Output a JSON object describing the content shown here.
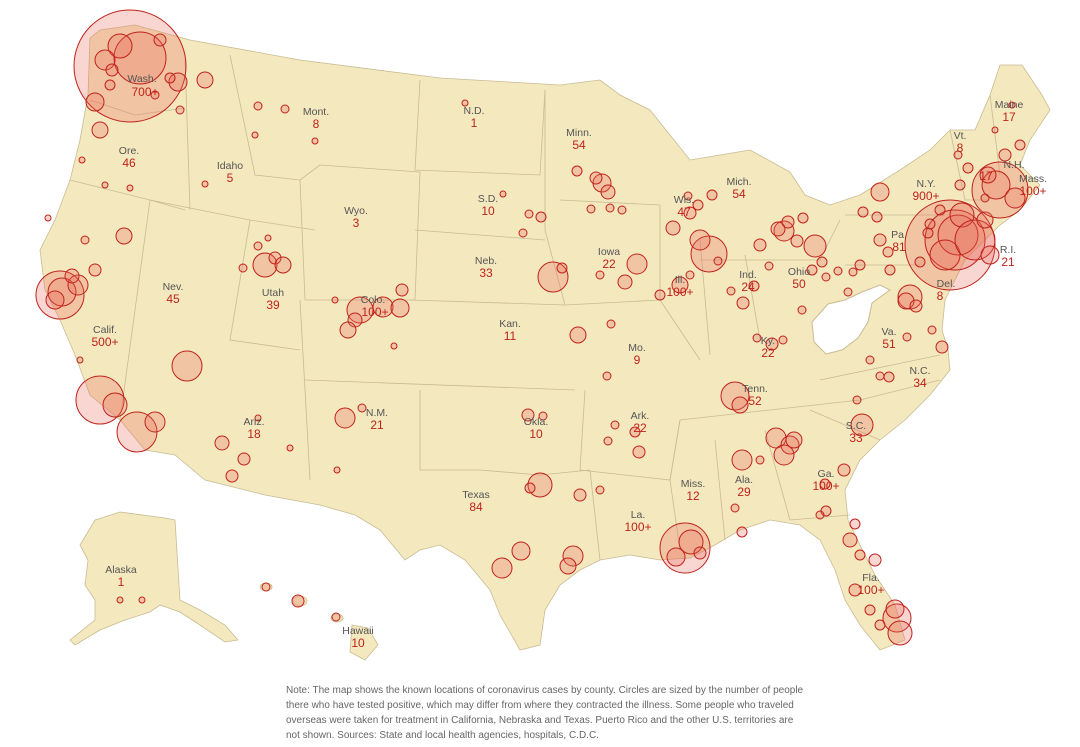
{
  "colors": {
    "land": "#f4e8be",
    "land_border": "#c9bb93",
    "no_cases_state": "#ffffff",
    "circle_fill": "#e86a5e",
    "circle_stroke": "#c0221b",
    "count_text": "#c0221b",
    "label_text": "#555555"
  },
  "states": [
    {
      "id": "wa",
      "name": "Wash.",
      "count": "700+"
    },
    {
      "id": "or",
      "name": "Ore.",
      "count": "46"
    },
    {
      "id": "ca",
      "name": "Calif.",
      "count": "500+"
    },
    {
      "id": "nv",
      "name": "Nev.",
      "count": "45"
    },
    {
      "id": "id",
      "name": "Idaho",
      "count": "5"
    },
    {
      "id": "mt",
      "name": "Mont.",
      "count": "8"
    },
    {
      "id": "wy",
      "name": "Wyo.",
      "count": "3"
    },
    {
      "id": "ut",
      "name": "Utah",
      "count": "39"
    },
    {
      "id": "co",
      "name": "Colo.",
      "count": "100+"
    },
    {
      "id": "az",
      "name": "Ariz.",
      "count": "18"
    },
    {
      "id": "nm",
      "name": "N.M.",
      "count": "21"
    },
    {
      "id": "nd",
      "name": "N.D.",
      "count": "1"
    },
    {
      "id": "sd",
      "name": "S.D.",
      "count": "10"
    },
    {
      "id": "ne",
      "name": "Neb.",
      "count": "33"
    },
    {
      "id": "ks",
      "name": "Kan.",
      "count": "11"
    },
    {
      "id": "ok",
      "name": "Okla.",
      "count": "10"
    },
    {
      "id": "tx",
      "name": "Texas",
      "count": "84"
    },
    {
      "id": "mn",
      "name": "Minn.",
      "count": "54"
    },
    {
      "id": "ia",
      "name": "Iowa",
      "count": "22"
    },
    {
      "id": "mo",
      "name": "Mo.",
      "count": "9"
    },
    {
      "id": "ar",
      "name": "Ark.",
      "count": "22"
    },
    {
      "id": "la",
      "name": "La.",
      "count": "100+"
    },
    {
      "id": "wi",
      "name": "Wis.",
      "count": "47"
    },
    {
      "id": "il",
      "name": "Ill.",
      "count": "100+"
    },
    {
      "id": "ms",
      "name": "Miss.",
      "count": "12"
    },
    {
      "id": "mi",
      "name": "Mich.",
      "count": "54"
    },
    {
      "id": "in",
      "name": "Ind.",
      "count": "24"
    },
    {
      "id": "oh",
      "name": "Ohio",
      "count": "50"
    },
    {
      "id": "ky",
      "name": "Ky.",
      "count": "22"
    },
    {
      "id": "tn",
      "name": "Tenn.",
      "count": "52"
    },
    {
      "id": "al",
      "name": "Ala.",
      "count": "29"
    },
    {
      "id": "ga",
      "name": "Ga.",
      "count": "100+"
    },
    {
      "id": "fl",
      "name": "Fla.",
      "count": "100+"
    },
    {
      "id": "sc",
      "name": "S.C.",
      "count": "33"
    },
    {
      "id": "nc",
      "name": "N.C.",
      "count": "34"
    },
    {
      "id": "va",
      "name": "Va.",
      "count": "51"
    },
    {
      "id": "pa",
      "name": "Pa.",
      "count": "81"
    },
    {
      "id": "ny",
      "name": "N.Y.",
      "count": "900+"
    },
    {
      "id": "vt",
      "name": "Vt.",
      "count": "8"
    },
    {
      "id": "nh",
      "name": "N.H.",
      "count": "17"
    },
    {
      "id": "me",
      "name": "Maine",
      "count": "17"
    },
    {
      "id": "ma",
      "name": "Mass.",
      "count": "100+"
    },
    {
      "id": "ri",
      "name": "R.I.",
      "count": "21"
    },
    {
      "id": "del",
      "name": "Del.",
      "count": "8"
    },
    {
      "id": "ak",
      "name": "Alaska",
      "count": "1"
    },
    {
      "id": "hi",
      "name": "Hawaii",
      "count": "10"
    }
  ],
  "note": "Note: The map shows the known locations of coronavirus cases by county. Circles are sized by the number of people there who have tested positive, which may differ from where they contracted the illness. Some people who traveled overseas were taken for treatment in California, Nebraska and Texas. Puerto Rico and the other U.S. territories are not shown. Sources: State and local health agencies, hospitals, C.D.C."
}
